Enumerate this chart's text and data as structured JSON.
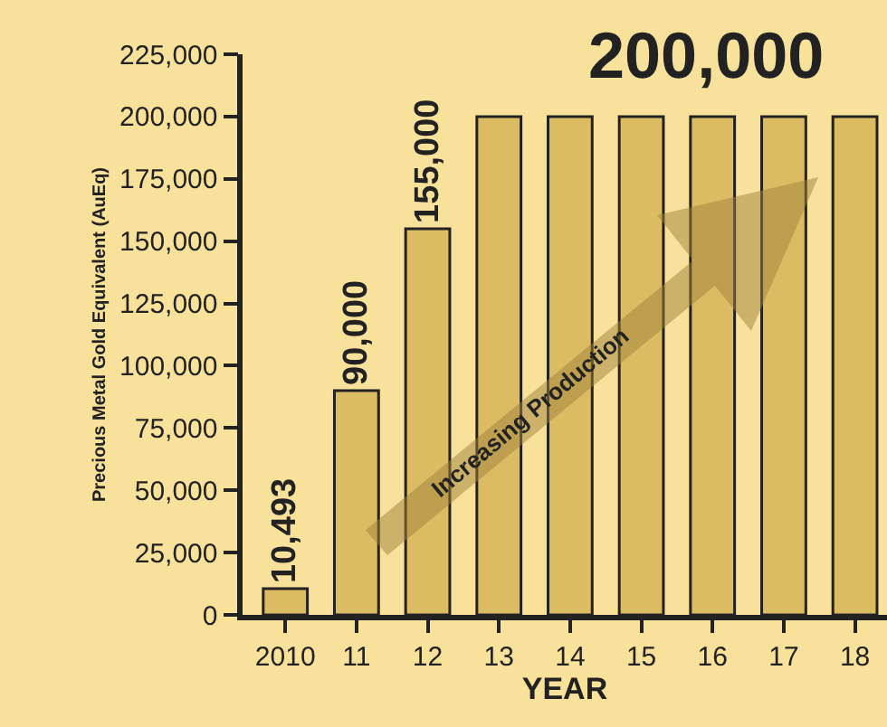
{
  "chart_data": {
    "type": "bar",
    "categories": [
      "2010",
      "11",
      "12",
      "13",
      "14",
      "15",
      "16",
      "17",
      "18"
    ],
    "values": [
      10493,
      90000,
      155000,
      200000,
      200000,
      200000,
      200000,
      200000,
      200000
    ],
    "value_labels": [
      "10,493",
      "90,000",
      "155,000",
      null,
      null,
      null,
      null,
      null,
      null
    ],
    "color": "#dcbc63",
    "xlabel": "YEAR",
    "ylabel": "Precious Metal Gold Equivalent (AuEq)",
    "ylim": [
      0,
      225000
    ],
    "yticks": [
      0,
      {
        "value": 25000,
        "label": "25,000"
      },
      {
        "value": 50000,
        "label": "50,000"
      },
      {
        "value": 75000,
        "label": "75,000"
      },
      {
        "value": 100000,
        "label": "100,000"
      },
      {
        "value": 125000,
        "label": "125,000"
      },
      {
        "value": 150000,
        "label": "150,000"
      },
      {
        "value": 175000,
        "label": "175,000"
      },
      {
        "value": 200000,
        "label": "200,000"
      },
      {
        "value": 225000,
        "label": "225,000"
      }
    ],
    "annotations": [
      "200,000",
      "Increasing Production"
    ],
    "grid": false
  }
}
